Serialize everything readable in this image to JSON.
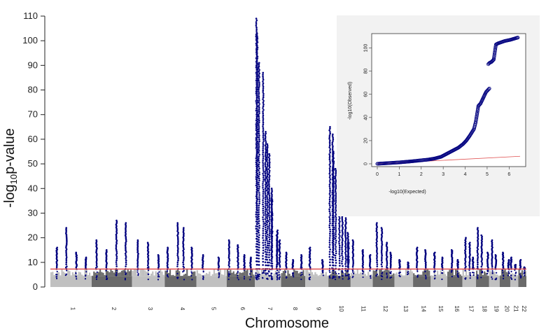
{
  "chart_data": [
    {
      "type": "scatter",
      "subtype": "manhattan",
      "title": "",
      "xlabel": "Chromosome",
      "ylabel": "-log10p-value",
      "ylim": [
        0,
        110
      ],
      "yticks": [
        0,
        10,
        20,
        30,
        40,
        50,
        60,
        70,
        80,
        90,
        100,
        110
      ],
      "significance_threshold": 7.3,
      "colors": {
        "points": "#00007f",
        "background_light": "#c0c0c0",
        "background_dark": "#6a6a6a",
        "threshold_line": "#e05050"
      },
      "chromosomes": [
        {
          "label": "1",
          "peaks": [
            16,
            24,
            14,
            12
          ]
        },
        {
          "label": "2",
          "peaks": [
            19,
            15,
            27,
            26
          ]
        },
        {
          "label": "3",
          "peaks": [
            19,
            18,
            13
          ]
        },
        {
          "label": "4",
          "peaks": [
            16,
            26,
            24,
            16
          ]
        },
        {
          "label": "5",
          "peaks": [
            13,
            12
          ]
        },
        {
          "label": "6",
          "peaks": [
            19,
            17,
            13,
            12
          ]
        },
        {
          "label": "7",
          "peaks": [
            109,
            103,
            91,
            87,
            63,
            58,
            54,
            40,
            36,
            21,
            23,
            19
          ]
        },
        {
          "label": "8",
          "peaks": [
            14,
            11,
            13
          ]
        },
        {
          "label": "9",
          "peaks": [
            16,
            11
          ]
        },
        {
          "label": "10",
          "peaks": [
            65,
            62,
            55,
            48,
            42,
            33,
            28,
            22,
            18
          ]
        },
        {
          "label": "11",
          "peaks": [
            19,
            15,
            13
          ]
        },
        {
          "label": "12",
          "peaks": [
            26,
            24,
            18,
            14
          ]
        },
        {
          "label": "13",
          "peaks": [
            11,
            10
          ]
        },
        {
          "label": "14",
          "peaks": [
            16,
            15
          ]
        },
        {
          "label": "15",
          "peaks": [
            14,
            12
          ]
        },
        {
          "label": "16",
          "peaks": [
            15,
            11
          ]
        },
        {
          "label": "17",
          "peaks": [
            20,
            18,
            12
          ]
        },
        {
          "label": "18",
          "peaks": [
            24,
            21,
            14
          ]
        },
        {
          "label": "19",
          "peaks": [
            19,
            13
          ]
        },
        {
          "label": "20",
          "peaks": [
            14,
            11
          ]
        },
        {
          "label": "21",
          "peaks": [
            12,
            9
          ]
        },
        {
          "label": "22",
          "peaks": [
            11,
            8
          ]
        }
      ]
    },
    {
      "type": "scatter",
      "subtype": "qq-plot",
      "title": "",
      "xlabel": "-log10(Expected)",
      "ylabel": "-log10(Observed)",
      "xlim": [
        0,
        6.5
      ],
      "ylim": [
        0,
        110
      ],
      "xticks": [
        0,
        1,
        2,
        3,
        4,
        5,
        6
      ],
      "yticks": [
        0,
        20,
        40,
        60,
        80,
        100
      ],
      "reference_line": {
        "x": [
          0,
          6.5
        ],
        "y": [
          0,
          6.5
        ]
      },
      "colors": {
        "points": "#00007f",
        "reference_line": "#e05050",
        "panel_background": "#f2f2f2"
      },
      "points": [
        [
          0,
          0
        ],
        [
          0.5,
          0.6
        ],
        [
          1,
          1.2
        ],
        [
          1.5,
          2
        ],
        [
          2,
          3
        ],
        [
          2.3,
          3.6
        ],
        [
          2.6,
          4.5
        ],
        [
          2.9,
          6
        ],
        [
          3.1,
          8
        ],
        [
          3.3,
          10
        ],
        [
          3.5,
          12
        ],
        [
          3.7,
          14
        ],
        [
          3.9,
          17
        ],
        [
          4.05,
          20
        ],
        [
          4.2,
          24
        ],
        [
          4.3,
          27
        ],
        [
          4.4,
          30
        ],
        [
          4.48,
          36
        ],
        [
          4.55,
          44
        ],
        [
          4.6,
          50
        ],
        [
          4.7,
          52
        ],
        [
          4.8,
          56
        ],
        [
          4.9,
          60
        ],
        [
          4.95,
          62
        ],
        [
          5.0,
          63
        ],
        [
          5.05,
          64
        ],
        [
          5.1,
          65
        ],
        [
          5.05,
          86
        ],
        [
          5.1,
          87
        ],
        [
          5.2,
          88
        ],
        [
          5.3,
          90
        ],
        [
          5.4,
          103
        ],
        [
          5.5,
          104
        ],
        [
          5.65,
          105
        ],
        [
          5.8,
          106
        ],
        [
          6.05,
          107
        ],
        [
          6.4,
          109
        ]
      ]
    }
  ]
}
